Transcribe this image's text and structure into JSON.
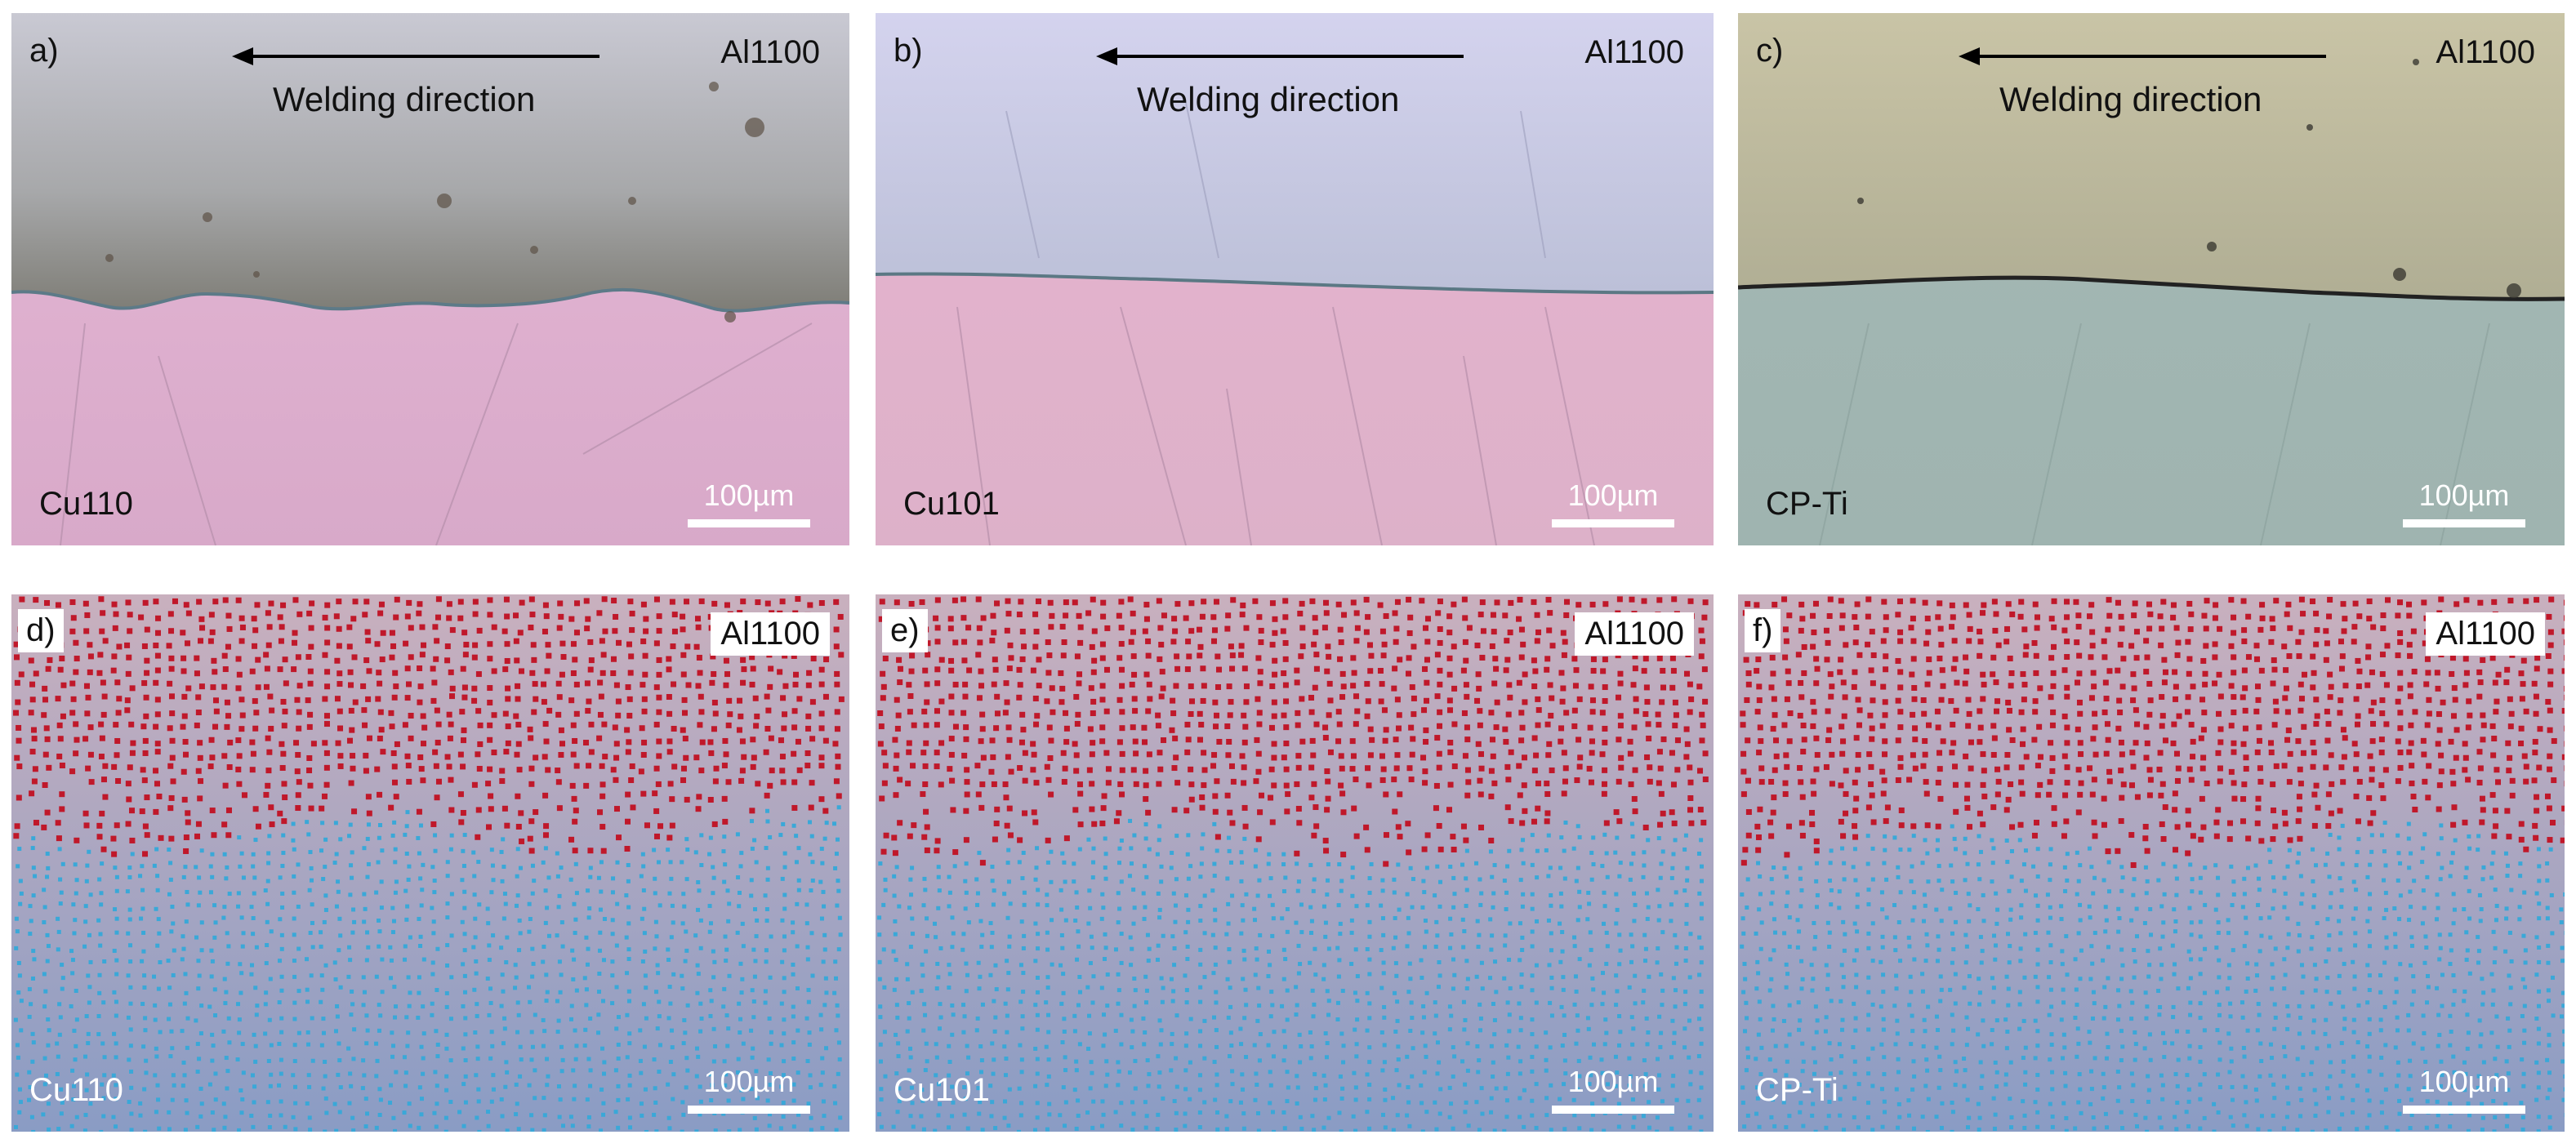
{
  "panels": [
    {
      "label": "a)",
      "top_material": "Al1100",
      "bottom_material": "Cu110",
      "direction_text": "Welding direction",
      "scale": "100µm"
    },
    {
      "label": "b)",
      "top_material": "Al1100",
      "bottom_material": "Cu101",
      "direction_text": "Welding direction",
      "scale": "100µm"
    },
    {
      "label": "c)",
      "top_material": "Al1100",
      "bottom_material": "CP-Ti",
      "direction_text": "Welding direction",
      "scale": "100µm"
    },
    {
      "label": "d)",
      "top_material": "Al1100",
      "bottom_material": "Cu110",
      "scale": "100µm"
    },
    {
      "label": "e)",
      "top_material": "Al1100",
      "bottom_material": "Cu101",
      "scale": "100µm"
    },
    {
      "label": "f)",
      "top_material": "Al1100",
      "bottom_material": "CP-Ti",
      "scale": "100µm"
    }
  ],
  "colors": {
    "al_particles": "#c0182a",
    "substrate_particles": "#3aa8d8",
    "sim_top_bg": "#c9b0be",
    "sim_bottom_bg": "#8a9cc4"
  }
}
